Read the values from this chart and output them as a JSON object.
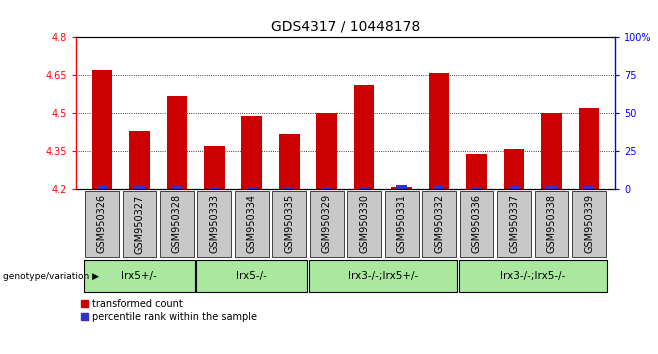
{
  "title": "GDS4317 / 10448178",
  "samples": [
    "GSM950326",
    "GSM950327",
    "GSM950328",
    "GSM950333",
    "GSM950334",
    "GSM950335",
    "GSM950329",
    "GSM950330",
    "GSM950331",
    "GSM950332",
    "GSM950336",
    "GSM950337",
    "GSM950338",
    "GSM950339"
  ],
  "red_values": [
    4.67,
    4.43,
    4.57,
    4.37,
    4.49,
    4.42,
    4.5,
    4.61,
    4.21,
    4.66,
    4.34,
    4.36,
    4.5,
    4.52
  ],
  "blue_heights": [
    0.012,
    0.012,
    0.012,
    0.01,
    0.01,
    0.01,
    0.01,
    0.01,
    0.018,
    0.012,
    0.01,
    0.012,
    0.012,
    0.012
  ],
  "ymin": 4.2,
  "ymax": 4.8,
  "yticks": [
    4.2,
    4.35,
    4.5,
    4.65,
    4.8
  ],
  "right_yticks": [
    0,
    25,
    50,
    75,
    100
  ],
  "groups": [
    {
      "label": "lrx5+/-",
      "start": 0,
      "end": 3
    },
    {
      "label": "lrx5-/-",
      "start": 3,
      "end": 6
    },
    {
      "label": "lrx3-/-;lrx5+/-",
      "start": 6,
      "end": 10
    },
    {
      "label": "lrx3-/-;lrx5-/-",
      "start": 10,
      "end": 14
    }
  ],
  "group_label": "genotype/variation",
  "legend_red": "transformed count",
  "legend_blue": "percentile rank within the sample",
  "bar_width": 0.55,
  "blue_bar_width": 0.28,
  "red_color": "#cc0000",
  "blue_color": "#3333cc",
  "bg_color": "#ffffff",
  "tick_bg_color": "#c8c8c8",
  "group_bg": "#aae8a0",
  "title_fontsize": 10,
  "tick_fontsize": 7
}
